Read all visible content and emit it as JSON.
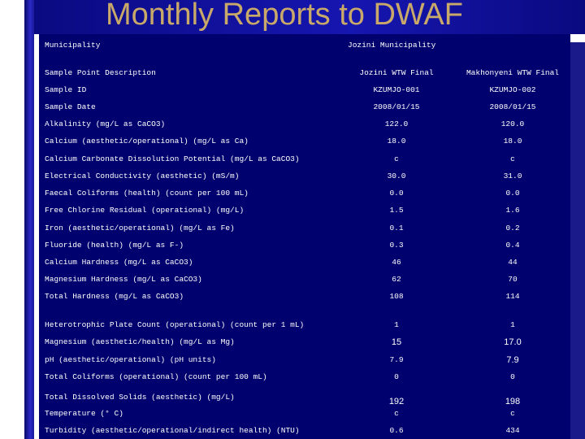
{
  "slide": {
    "title": "Monthly Reports to DWAF"
  },
  "colors": {
    "background": "#00006e",
    "text": "#ffffff",
    "title": "#c9a96a",
    "accent_bar": "#1616b0"
  },
  "table": {
    "rows": [
      {
        "label": "Municipality",
        "v1": "Jozini Municipality",
        "v2": ""
      },
      {
        "label": "Sample Point Description",
        "v1": "Jozini WTW Final",
        "v2": "Makhonyeni WTW Final"
      },
      {
        "label": "Sample ID",
        "v1": "KZUMJO-001",
        "v2": "KZUMJO-002"
      },
      {
        "label": "Sample Date",
        "v1": "2008/01/15",
        "v2": "2008/01/15"
      },
      {
        "label": "Alkalinity (mg/L as CaCO3)",
        "v1": "122.0",
        "v2": "120.0"
      },
      {
        "label": "Calcium (aesthetic/operational) (mg/L as Ca)",
        "v1": "18.0",
        "v2": "18.0"
      },
      {
        "label": "Calcium Carbonate Dissolution Potential (mg/L as CaCO3)",
        "v1": "c",
        "v2": "c"
      },
      {
        "label": "Electrical Conductivity (aesthetic) (mS/m)",
        "v1": "30.0",
        "v2": "31.0"
      },
      {
        "label": "Faecal Coliforms (health) (count per 100 mL)",
        "v1": "0.0",
        "v2": "0.0"
      },
      {
        "label": "Free Chlorine Residual (operational) (mg/L)",
        "v1": "1.5",
        "v2": "1.6"
      },
      {
        "label": "Iron (aesthetic/operational) (mg/L as Fe)",
        "v1": "0.1",
        "v2": "0.2"
      },
      {
        "label": "Fluoride (health) (mg/L as F-)",
        "v1": "0.3",
        "v2": "0.4"
      },
      {
        "label": "Calcium Hardness (mg/L as CaCO3)",
        "v1": "46",
        "v2": "44"
      },
      {
        "label": "Magnesium Hardness (mg/L as CaCO3)",
        "v1": "62",
        "v2": "70"
      },
      {
        "label": "Total Hardness (mg/L as CaCO3)",
        "v1": "108",
        "v2": "114"
      },
      {
        "label": "Heterotrophic Plate Count (operational) (count per 1 mL)",
        "v1": "1",
        "v2": "1"
      },
      {
        "label": "Magnesium (aesthetic/health) (mg/L as Mg)",
        "v1": "15",
        "v2": "17.0"
      },
      {
        "label": "pH (aesthetic/operational) (pH units)",
        "v1": "7.9",
        "v2": "7.9"
      },
      {
        "label": "Total Coliforms (operational) (count per 100 mL)",
        "v1": "0",
        "v2": "0"
      },
      {
        "label": "Total Dissolved Solids (aesthetic) (mg/L)",
        "v1": "192",
        "v2": "198"
      },
      {
        "label": "Temperature (° C)",
        "v1": "c",
        "v2": "c"
      },
      {
        "label": "Turbidity (aesthetic/operational/indirect health) (NTU)",
        "v1": "0.6",
        "v2": "434"
      }
    ]
  }
}
